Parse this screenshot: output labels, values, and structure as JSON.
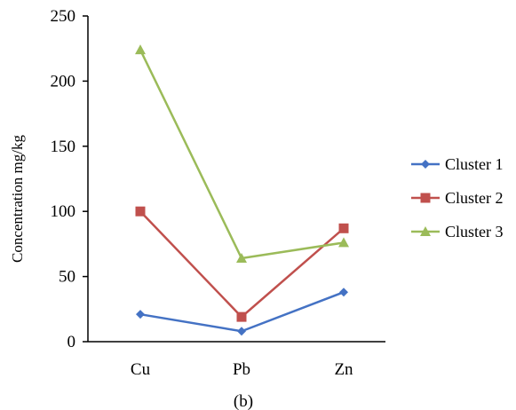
{
  "chart_data": {
    "type": "line",
    "title": "",
    "xlabel": "",
    "ylabel": "Concentration mg/kg",
    "caption": "(b)",
    "categories": [
      "Cu",
      "Pb",
      "Zn"
    ],
    "ylim": [
      0,
      250
    ],
    "yticks": [
      "0",
      "50",
      "100",
      "150",
      "200",
      "250"
    ],
    "grid": false,
    "legend_position": "right",
    "series": [
      {
        "name": "Cluster 1",
        "values": [
          21,
          8,
          38
        ],
        "color": "#4472C4",
        "marker": "diamond"
      },
      {
        "name": "Cluster 2",
        "values": [
          100,
          19,
          87
        ],
        "color": "#C0504D",
        "marker": "square"
      },
      {
        "name": "Cluster 3",
        "values": [
          224,
          64,
          76
        ],
        "color": "#9BBB59",
        "marker": "triangle"
      }
    ]
  }
}
